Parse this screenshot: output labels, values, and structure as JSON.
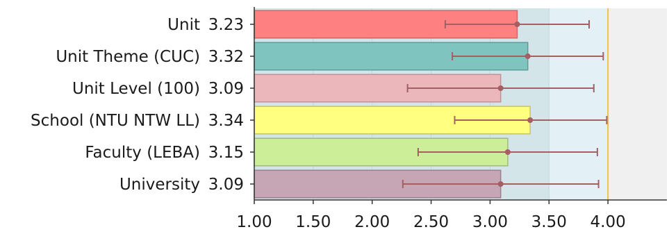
{
  "chart_data": {
    "type": "bar",
    "orientation": "horizontal",
    "categories": [
      "Unit",
      "Unit Theme (CUC)",
      "Unit Level (100)",
      "School (NTU NTW LL)",
      "Faculty (LEBA)",
      "University"
    ],
    "values": [
      3.23,
      3.32,
      3.09,
      3.34,
      3.15,
      3.09
    ],
    "value_labels": [
      "3.23",
      "3.32",
      "3.09",
      "3.34",
      "3.15",
      "3.09"
    ],
    "error_low": [
      2.62,
      2.68,
      2.3,
      2.7,
      2.39,
      2.26
    ],
    "error_high": [
      3.84,
      3.96,
      3.88,
      3.99,
      3.91,
      3.92
    ],
    "bar_colors": [
      "#ff8080",
      "#80c4c0",
      "#ebb7bb",
      "#ffff80",
      "#cdee99",
      "#c6a5b4"
    ],
    "bar_edge_colors": [
      "#d06767",
      "#5e9c99",
      "#bf9297",
      "#c6c65f",
      "#9fbc74",
      "#9a7f8c"
    ],
    "xlim": [
      1.0,
      4.5
    ],
    "x_ticks": [
      1.0,
      1.5,
      2.0,
      2.5,
      3.0,
      3.5,
      4.0
    ],
    "x_tick_labels": [
      "1.00",
      "1.50",
      "2.00",
      "2.50",
      "3.00",
      "3.50",
      "4.00"
    ],
    "background_bands": [
      {
        "from": 1.0,
        "to": 3.5,
        "color": "#d4e5ea"
      },
      {
        "from": 3.5,
        "to": 4.0,
        "color": "#e3f1f6"
      },
      {
        "from": 4.0,
        "to": 4.5,
        "color": "#f0f0f0"
      }
    ],
    "reference_line": {
      "x": 4.0,
      "color": "#f2c04a"
    },
    "error_bar_color": "#a55f63",
    "title": "",
    "xlabel": "",
    "ylabel": ""
  }
}
